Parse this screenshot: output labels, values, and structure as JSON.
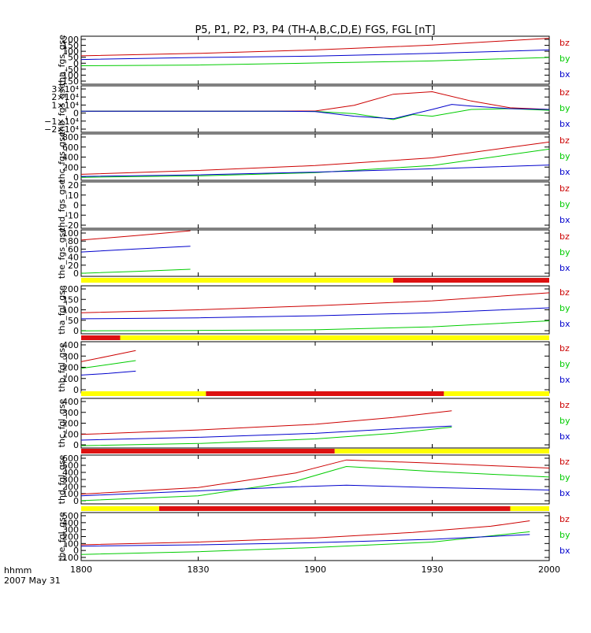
{
  "figure": {
    "title": "P5, P1, P2, P3, P4 (TH-A,B,C,D,E) FGS, FGL [nT]",
    "footer_time_label": "hhmm",
    "footer_date_label": "2007 May 31",
    "x_axis": {
      "range": [
        "18:00",
        "20:00"
      ],
      "ticks": [
        {
          "time": "18:00",
          "label": "1800"
        },
        {
          "time": "18:30",
          "label": "1830"
        },
        {
          "time": "19:00",
          "label": "1900"
        },
        {
          "time": "19:30",
          "label": "1930"
        },
        {
          "time": "20:00",
          "label": "2000"
        }
      ]
    },
    "colors": {
      "bx": "#0000cc",
      "by": "#00cc00",
      "bz": "#cc0000",
      "bar_yellow": "#ffff00",
      "bar_red": "#dd1111",
      "frame": "#000000"
    }
  },
  "chart_data": [
    {
      "type": "line",
      "ylabel": "tha_fgs_gse",
      "ylim": [
        -150,
        200
      ],
      "ytick_labels": [
        "200",
        "150",
        "100",
        "50",
        "0",
        "-50",
        "-100",
        "-150"
      ],
      "legend": [
        "bz",
        "by",
        "bx"
      ],
      "series": [
        {
          "name": "bz",
          "x": [
            "18:00",
            "18:30",
            "19:00",
            "19:30",
            "20:00"
          ],
          "values": [
            57,
            75,
            100,
            135,
            185
          ]
        },
        {
          "name": "by",
          "x": [
            "18:00",
            "18:30",
            "19:00",
            "19:30",
            "20:00"
          ],
          "values": [
            -15,
            -10,
            5,
            20,
            45
          ]
        },
        {
          "name": "bx",
          "x": [
            "18:00",
            "18:30",
            "19:00",
            "19:30",
            "20:00"
          ],
          "values": [
            30,
            45,
            55,
            75,
            100
          ]
        }
      ]
    },
    {
      "type": "line",
      "ylabel": "thb_fgs_gse",
      "ylim": [
        -25000,
        30000
      ],
      "ytick_labels": [
        "3×10⁴",
        "2×10⁴",
        "1×10⁴",
        "0",
        "−1×10⁴",
        "−2×10⁴"
      ],
      "legend": [
        "bz",
        "by",
        "bx"
      ],
      "series": [
        {
          "name": "bz",
          "x": [
            "18:00",
            "18:30",
            "18:50",
            "19:00",
            "19:10",
            "19:20",
            "19:30",
            "19:40",
            "19:50",
            "20:00"
          ],
          "values": [
            0,
            0,
            100,
            200,
            7000,
            20000,
            23000,
            12000,
            4000,
            2000
          ]
        },
        {
          "name": "by",
          "x": [
            "18:00",
            "18:30",
            "18:50",
            "19:00",
            "19:10",
            "19:20",
            "19:25",
            "19:30",
            "19:40",
            "19:50",
            "20:00"
          ],
          "values": [
            0,
            0,
            -200,
            -300,
            -3000,
            -10000,
            -4000,
            -6000,
            2000,
            3000,
            1000
          ]
        },
        {
          "name": "bx",
          "x": [
            "18:00",
            "18:30",
            "18:50",
            "19:00",
            "19:10",
            "19:20",
            "19:30",
            "19:35",
            "19:40",
            "19:50",
            "20:00"
          ],
          "values": [
            0,
            0,
            -100,
            -500,
            -6000,
            -9000,
            2000,
            8000,
            6000,
            3000,
            2000
          ]
        }
      ]
    },
    {
      "type": "line",
      "ylabel": "thc_fgs_gse",
      "ylim": [
        -50,
        800
      ],
      "ytick_labels": [
        "800",
        "600",
        "400",
        "200",
        "0"
      ],
      "legend": [
        "bz",
        "by",
        "bx"
      ],
      "series": [
        {
          "name": "bz",
          "x": [
            "18:00",
            "18:30",
            "19:00",
            "19:30",
            "20:00"
          ],
          "values": [
            60,
            130,
            220,
            360,
            650
          ]
        },
        {
          "name": "by",
          "x": [
            "18:00",
            "18:30",
            "19:00",
            "19:30",
            "20:00"
          ],
          "values": [
            5,
            30,
            90,
            220,
            520
          ]
        },
        {
          "name": "bx",
          "x": [
            "18:00",
            "18:30",
            "19:00",
            "19:30",
            "20:00"
          ],
          "values": [
            20,
            50,
            100,
            160,
            230
          ]
        }
      ]
    },
    {
      "type": "line",
      "ylabel": "thd_fgs_gse",
      "ylim": [
        -20,
        20
      ],
      "ytick_labels": [
        "20",
        "10",
        "0",
        "-10",
        "-20"
      ],
      "legend": [
        "bz",
        "by",
        "bx"
      ],
      "series": []
    },
    {
      "type": "line",
      "ylabel": "the_fgs_gse",
      "ylim": [
        -5,
        100
      ],
      "ytick_labels": [
        "100",
        "80",
        "60",
        "40",
        "20",
        "0"
      ],
      "legend": [
        "bz",
        "by",
        "bx"
      ],
      "series": [
        {
          "name": "bz",
          "x": [
            "18:00",
            "18:14",
            "18:28"
          ],
          "values": [
            77,
            87,
            98
          ]
        },
        {
          "name": "by",
          "x": [
            "18:00",
            "18:14",
            "18:28"
          ],
          "values": [
            2,
            6,
            11
          ]
        },
        {
          "name": "bx",
          "x": [
            "18:00",
            "18:14",
            "18:28"
          ],
          "values": [
            50,
            57,
            63
          ]
        }
      ]
    },
    {
      "type": "line",
      "ylabel": "tha_fgl_gse",
      "ylim": [
        -20,
        220
      ],
      "ytick_labels": [
        "200",
        "150",
        "100",
        "50",
        "0"
      ],
      "legend": [
        "bz",
        "by",
        "bx"
      ],
      "mode_bar": [
        {
          "from": "18:00",
          "to": "19:20",
          "color": "yellow"
        },
        {
          "from": "19:20",
          "to": "20:00",
          "color": "red"
        }
      ],
      "series": [
        {
          "name": "bz",
          "x": [
            "18:00",
            "18:30",
            "19:00",
            "19:30",
            "20:00"
          ],
          "values": [
            85,
            100,
            120,
            145,
            185
          ]
        },
        {
          "name": "by",
          "x": [
            "18:00",
            "18:30",
            "19:00",
            "19:30",
            "20:00"
          ],
          "values": [
            -5,
            -3,
            0,
            15,
            45
          ]
        },
        {
          "name": "bx",
          "x": [
            "18:00",
            "18:30",
            "19:00",
            "19:30",
            "20:00"
          ],
          "values": [
            55,
            60,
            70,
            85,
            110
          ]
        }
      ]
    },
    {
      "type": "line",
      "ylabel": "thb_fgl_gse",
      "ylim": [
        -20,
        440
      ],
      "ytick_labels": [
        "400",
        "300",
        "200",
        "100",
        "0"
      ],
      "legend": [
        "bz",
        "by",
        "bx"
      ],
      "mode_bar": [
        {
          "from": "18:00",
          "to": "18:10",
          "color": "red"
        },
        {
          "from": "18:10",
          "to": "20:00",
          "color": "yellow"
        }
      ],
      "series": [
        {
          "name": "bz",
          "x": [
            "18:00",
            "18:07",
            "18:14"
          ],
          "values": [
            260,
            310,
            360
          ]
        },
        {
          "name": "by",
          "x": [
            "18:00",
            "18:07",
            "18:14"
          ],
          "values": [
            200,
            235,
            270
          ]
        },
        {
          "name": "bx",
          "x": [
            "18:00",
            "18:07",
            "18:14"
          ],
          "values": [
            140,
            155,
            175
          ]
        }
      ]
    },
    {
      "type": "line",
      "ylabel": "thc_fgl_gse",
      "ylim": [
        -20,
        420
      ],
      "ytick_labels": [
        "400",
        "300",
        "200",
        "100",
        "0"
      ],
      "legend": [
        "bz",
        "by",
        "bx"
      ],
      "mode_bar": [
        {
          "from": "18:00",
          "to": "18:32",
          "color": "yellow"
        },
        {
          "from": "18:32",
          "to": "19:33",
          "color": "red"
        },
        {
          "from": "19:33",
          "to": "20:00",
          "color": "yellow"
        }
      ],
      "series": [
        {
          "name": "bz",
          "x": [
            "18:00",
            "18:30",
            "19:00",
            "19:20",
            "19:35"
          ],
          "values": [
            100,
            140,
            190,
            250,
            310
          ]
        },
        {
          "name": "by",
          "x": [
            "18:00",
            "18:30",
            "19:00",
            "19:20",
            "19:35"
          ],
          "values": [
            0,
            20,
            60,
            110,
            165
          ]
        },
        {
          "name": "bx",
          "x": [
            "18:00",
            "18:30",
            "19:00",
            "19:20",
            "19:35"
          ],
          "values": [
            50,
            75,
            110,
            150,
            175
          ]
        }
      ]
    },
    {
      "type": "line",
      "ylabel": "thd_fgl_gse",
      "ylim": [
        0,
        600
      ],
      "ytick_labels": [
        "600",
        "500",
        "400",
        "300",
        "200",
        "100",
        "0"
      ],
      "legend": [
        "bz",
        "by",
        "bx"
      ],
      "mode_bar": [
        {
          "from": "18:00",
          "to": "19:05",
          "color": "red"
        },
        {
          "from": "19:05",
          "to": "20:00",
          "color": "yellow"
        }
      ],
      "series": [
        {
          "name": "bz",
          "x": [
            "18:00",
            "18:30",
            "18:55",
            "19:08",
            "19:30",
            "20:00"
          ],
          "values": [
            120,
            200,
            380,
            540,
            500,
            440
          ]
        },
        {
          "name": "by",
          "x": [
            "18:00",
            "18:30",
            "18:55",
            "19:08",
            "19:30",
            "20:00"
          ],
          "values": [
            40,
            100,
            280,
            460,
            400,
            330
          ]
        },
        {
          "name": "bx",
          "x": [
            "18:00",
            "18:30",
            "18:55",
            "19:08",
            "19:30",
            "20:00"
          ],
          "values": [
            100,
            160,
            210,
            230,
            200,
            170
          ]
        }
      ]
    },
    {
      "type": "line",
      "ylabel": "the_fgl_gse",
      "ylim": [
        -150,
        550
      ],
      "ytick_labels": [
        "500",
        "400",
        "300",
        "200",
        "100",
        "0",
        "-100"
      ],
      "legend": [
        "bz",
        "by",
        "bx"
      ],
      "mode_bar": [
        {
          "from": "18:00",
          "to": "18:20",
          "color": "yellow"
        },
        {
          "from": "18:20",
          "to": "19:50",
          "color": "red"
        },
        {
          "from": "19:50",
          "to": "20:00",
          "color": "yellow"
        }
      ],
      "series": [
        {
          "name": "bz",
          "x": [
            "18:00",
            "18:30",
            "19:00",
            "19:25",
            "19:45",
            "19:55"
          ],
          "values": [
            80,
            120,
            180,
            260,
            350,
            430
          ]
        },
        {
          "name": "by",
          "x": [
            "18:00",
            "18:30",
            "19:00",
            "19:30",
            "19:55"
          ],
          "values": [
            -60,
            -20,
            40,
            120,
            270
          ]
        },
        {
          "name": "bx",
          "x": [
            "18:00",
            "18:30",
            "19:00",
            "19:30",
            "19:55"
          ],
          "values": [
            60,
            80,
            110,
            160,
            230
          ]
        }
      ]
    }
  ]
}
